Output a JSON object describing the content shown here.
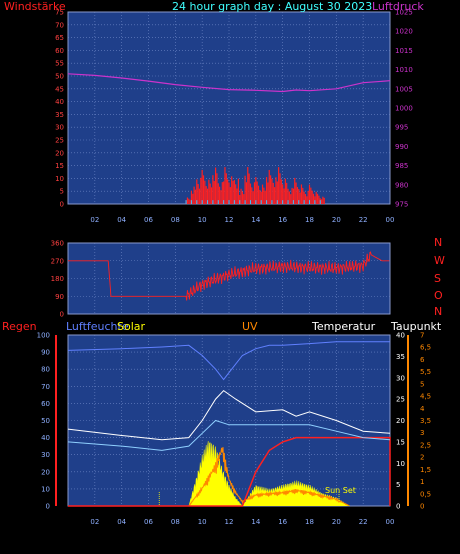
{
  "title": "24 hour graph day : August 30 2023",
  "colors": {
    "bg": "#000000",
    "panel": "#1f3f8a",
    "grid": "#6f88c8",
    "wind": "#ff2020",
    "gust": "#ff0000",
    "pressure": "#cc33cc",
    "dir": "#ff2020",
    "regen": "#ff2020",
    "humidity": "#6080ff",
    "solar": "#ffff00",
    "uv": "#ff8800",
    "temp": "#ffffff",
    "dew": "#8fd0ff"
  },
  "labels": {
    "windstaerke": "Windstärke",
    "luftdruck": "Luftdruck",
    "regen": "Regen",
    "luftfeuchte": "Luftfeuchte",
    "solar": "Solar",
    "uv": "UV",
    "temperatur": "Temperatur",
    "taupunkt": "Taupunkt",
    "sunset": "Sun Set",
    "compass": [
      "N",
      "W",
      "S",
      "O",
      "N"
    ]
  },
  "chart_data": [
    {
      "type": "line",
      "name": "wind-pressure",
      "x_ticks": [
        "02",
        "04",
        "06",
        "08",
        "10",
        "12",
        "14",
        "16",
        "18",
        "20",
        "22",
        "00"
      ],
      "y_left_ticks": [
        0,
        5,
        10,
        15,
        20,
        25,
        30,
        35,
        40,
        45,
        50,
        55,
        60,
        65,
        70,
        75
      ],
      "y_left_label": "Windstärke",
      "y_right_ticks": [
        975,
        980,
        985,
        990,
        995,
        1000,
        1005,
        1010,
        1015,
        1020,
        1025
      ],
      "y_right_label": "Luftdruck",
      "ylim_left": [
        0,
        75
      ],
      "ylim_right": [
        975,
        1025
      ],
      "pressure_hpa": [
        [
          0,
          1008.9
        ],
        [
          2,
          1008.5
        ],
        [
          4,
          1007.8
        ],
        [
          6,
          1007.0
        ],
        [
          8,
          1006.1
        ],
        [
          10,
          1005.4
        ],
        [
          12,
          1004.8
        ],
        [
          14,
          1004.6
        ],
        [
          16,
          1004.3
        ],
        [
          17,
          1004.7
        ],
        [
          18,
          1004.5
        ],
        [
          20,
          1005.0
        ],
        [
          22,
          1006.6
        ],
        [
          24,
          1007.1
        ]
      ],
      "wind_peaks": [
        [
          8.8,
          3
        ],
        [
          9.2,
          8
        ],
        [
          9.6,
          12
        ],
        [
          10.0,
          14
        ],
        [
          10.4,
          10
        ],
        [
          10.8,
          15
        ],
        [
          11.2,
          9
        ],
        [
          11.6,
          16
        ],
        [
          12.0,
          12
        ],
        [
          12.4,
          11
        ],
        [
          12.8,
          7
        ],
        [
          13.2,
          17
        ],
        [
          13.6,
          10
        ],
        [
          14.0,
          11
        ],
        [
          14.4,
          8
        ],
        [
          14.8,
          14
        ],
        [
          15.2,
          11
        ],
        [
          15.6,
          16
        ],
        [
          16.0,
          11
        ],
        [
          16.4,
          7
        ],
        [
          16.8,
          12
        ],
        [
          17.2,
          9
        ],
        [
          17.6,
          6
        ],
        [
          18.0,
          8
        ],
        [
          18.4,
          5
        ],
        [
          18.8,
          3
        ]
      ]
    },
    {
      "type": "line",
      "name": "wind-direction",
      "y_ticks": [
        0,
        90,
        180,
        270,
        360
      ],
      "ylim": [
        0,
        360
      ],
      "series_deg": [
        [
          0,
          270
        ],
        [
          3,
          270
        ],
        [
          3.2,
          90
        ],
        [
          8.8,
          90
        ],
        [
          10,
          150
        ],
        [
          12,
          200
        ],
        [
          14,
          230
        ],
        [
          16,
          240
        ],
        [
          18,
          235
        ],
        [
          20,
          232
        ],
        [
          22,
          245
        ],
        [
          22.6,
          300
        ],
        [
          23.4,
          270
        ],
        [
          24,
          270
        ]
      ]
    },
    {
      "type": "line",
      "name": "weather",
      "y_left_ticks": [
        0,
        10,
        20,
        30,
        40,
        50,
        60,
        70,
        80,
        90,
        100
      ],
      "y_right_temp_ticks": [
        0,
        5,
        10,
        15,
        20,
        25,
        30,
        35,
        40
      ],
      "y_right_uv_ticks": [
        "0",
        "0,5",
        "1",
        "1,5",
        "2",
        "2,5",
        "3",
        "3,5",
        "4",
        "4,5",
        "5",
        "5,5",
        "6",
        "6,5",
        "7"
      ],
      "ylim_humidity": [
        0,
        100
      ],
      "ylim_temp": [
        0,
        40
      ],
      "humidity_pct": [
        [
          0,
          91
        ],
        [
          4,
          92
        ],
        [
          7,
          93
        ],
        [
          9,
          94
        ],
        [
          10,
          88
        ],
        [
          11,
          80
        ],
        [
          11.6,
          74
        ],
        [
          12,
          78
        ],
        [
          13,
          88
        ],
        [
          14,
          92
        ],
        [
          15,
          94
        ],
        [
          16,
          94
        ],
        [
          18,
          95
        ],
        [
          20,
          96
        ],
        [
          22,
          96
        ],
        [
          24,
          96
        ]
      ],
      "temperature_c": [
        [
          0,
          18
        ],
        [
          4,
          16.5
        ],
        [
          7,
          15.5
        ],
        [
          9,
          16
        ],
        [
          10,
          20
        ],
        [
          11,
          25
        ],
        [
          11.6,
          27
        ],
        [
          12.5,
          25
        ],
        [
          14,
          22
        ],
        [
          16,
          22.5
        ],
        [
          17,
          21
        ],
        [
          18,
          22
        ],
        [
          20,
          20
        ],
        [
          22,
          17.5
        ],
        [
          24,
          17
        ]
      ],
      "dewpoint_c": [
        [
          0,
          15
        ],
        [
          4,
          14
        ],
        [
          7,
          13
        ],
        [
          9,
          14
        ],
        [
          10,
          17
        ],
        [
          11,
          20
        ],
        [
          12,
          19
        ],
        [
          13,
          19
        ],
        [
          14,
          19
        ],
        [
          16,
          19
        ],
        [
          18,
          19
        ],
        [
          20,
          17.5
        ],
        [
          22,
          16
        ],
        [
          24,
          15.5
        ]
      ],
      "rain_series": [
        [
          0,
          0
        ],
        [
          13,
          0
        ],
        [
          14,
          8
        ],
        [
          15,
          13
        ],
        [
          16,
          15
        ],
        [
          17,
          16
        ],
        [
          24,
          16
        ]
      ],
      "solar_peaks": [
        [
          9,
          0
        ],
        [
          9.5,
          6
        ],
        [
          10,
          12
        ],
        [
          10.5,
          16
        ],
        [
          11,
          14
        ],
        [
          11.5,
          9
        ],
        [
          12,
          5
        ],
        [
          12.5,
          2
        ],
        [
          13,
          0
        ],
        [
          14,
          5
        ],
        [
          15,
          4
        ],
        [
          16,
          5
        ],
        [
          17,
          6
        ],
        [
          18,
          5
        ],
        [
          19,
          3
        ],
        [
          20,
          2
        ],
        [
          21,
          0
        ]
      ],
      "uv_series": [
        [
          9,
          0
        ],
        [
          10,
          0.8
        ],
        [
          11,
          1.8
        ],
        [
          11.5,
          2.6
        ],
        [
          12,
          1.2
        ],
        [
          12.5,
          0.6
        ],
        [
          13,
          0.2
        ],
        [
          14,
          0.5
        ],
        [
          16,
          0.6
        ],
        [
          17,
          0.7
        ],
        [
          18,
          0.6
        ],
        [
          20,
          0.3
        ],
        [
          21,
          0
        ]
      ]
    }
  ]
}
